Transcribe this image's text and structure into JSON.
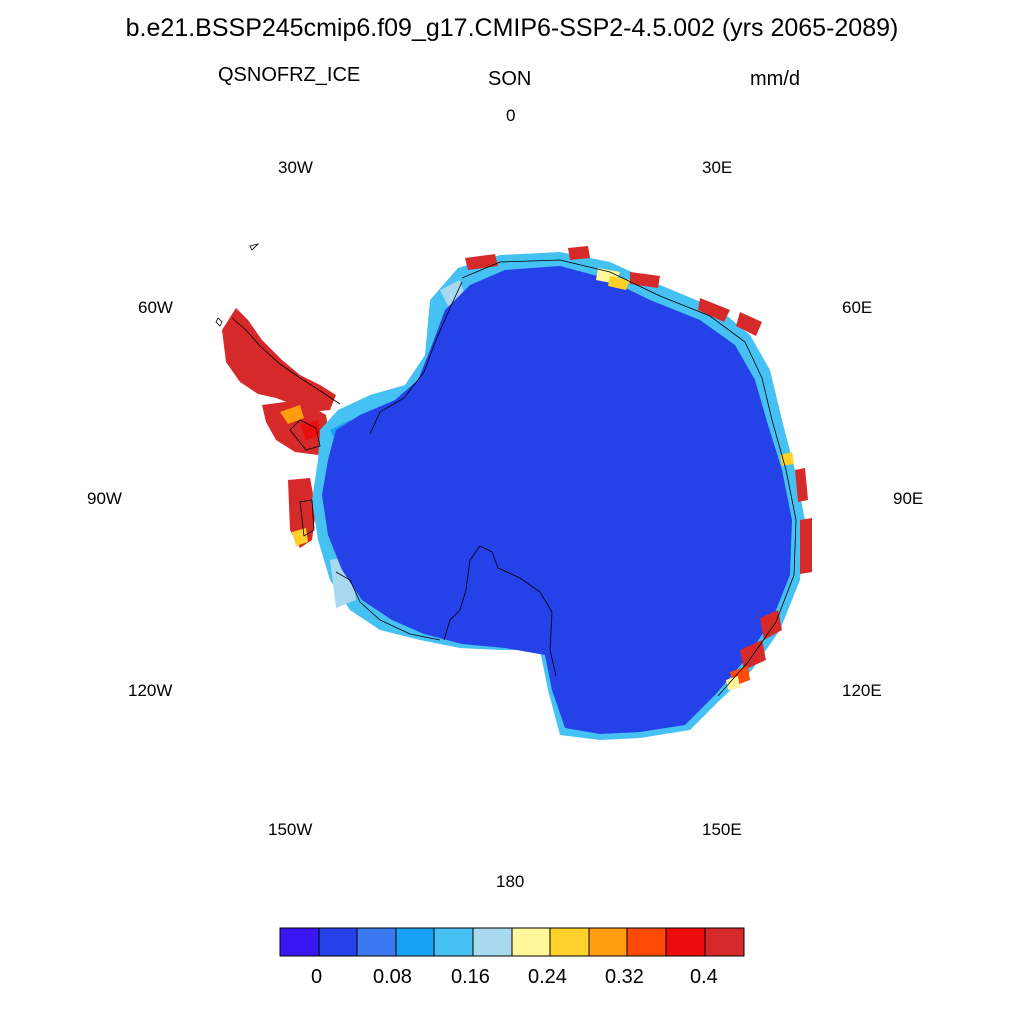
{
  "title": "b.e21.BSSP245cmip6.f09_g17.CMIP6-SSP2-4.5.002 (yrs 2065-2089)",
  "variable": "QSNOFRZ_ICE",
  "season": "SON",
  "units": "mm/d",
  "longitude_labels": [
    "0",
    "30E",
    "60E",
    "90E",
    "120E",
    "150E",
    "180",
    "150W",
    "120W",
    "90W",
    "60W",
    "30W"
  ],
  "colorbar": {
    "colors": [
      "#3b16f5",
      "#2541e8",
      "#3a79ef",
      "#17a2f5",
      "#46c1f3",
      "#a8d9ee",
      "#fff79a",
      "#ffd12a",
      "#ff9c0f",
      "#ff4a08",
      "#ee0d0d",
      "#d62a2a"
    ],
    "tick_labels": [
      "0",
      "0.08",
      "0.16",
      "0.24",
      "0.32",
      "0.4"
    ]
  },
  "map": {
    "projection": "south polar stereographic",
    "interior_color": "#2541e8",
    "high_value_color": "#d62a2a"
  }
}
